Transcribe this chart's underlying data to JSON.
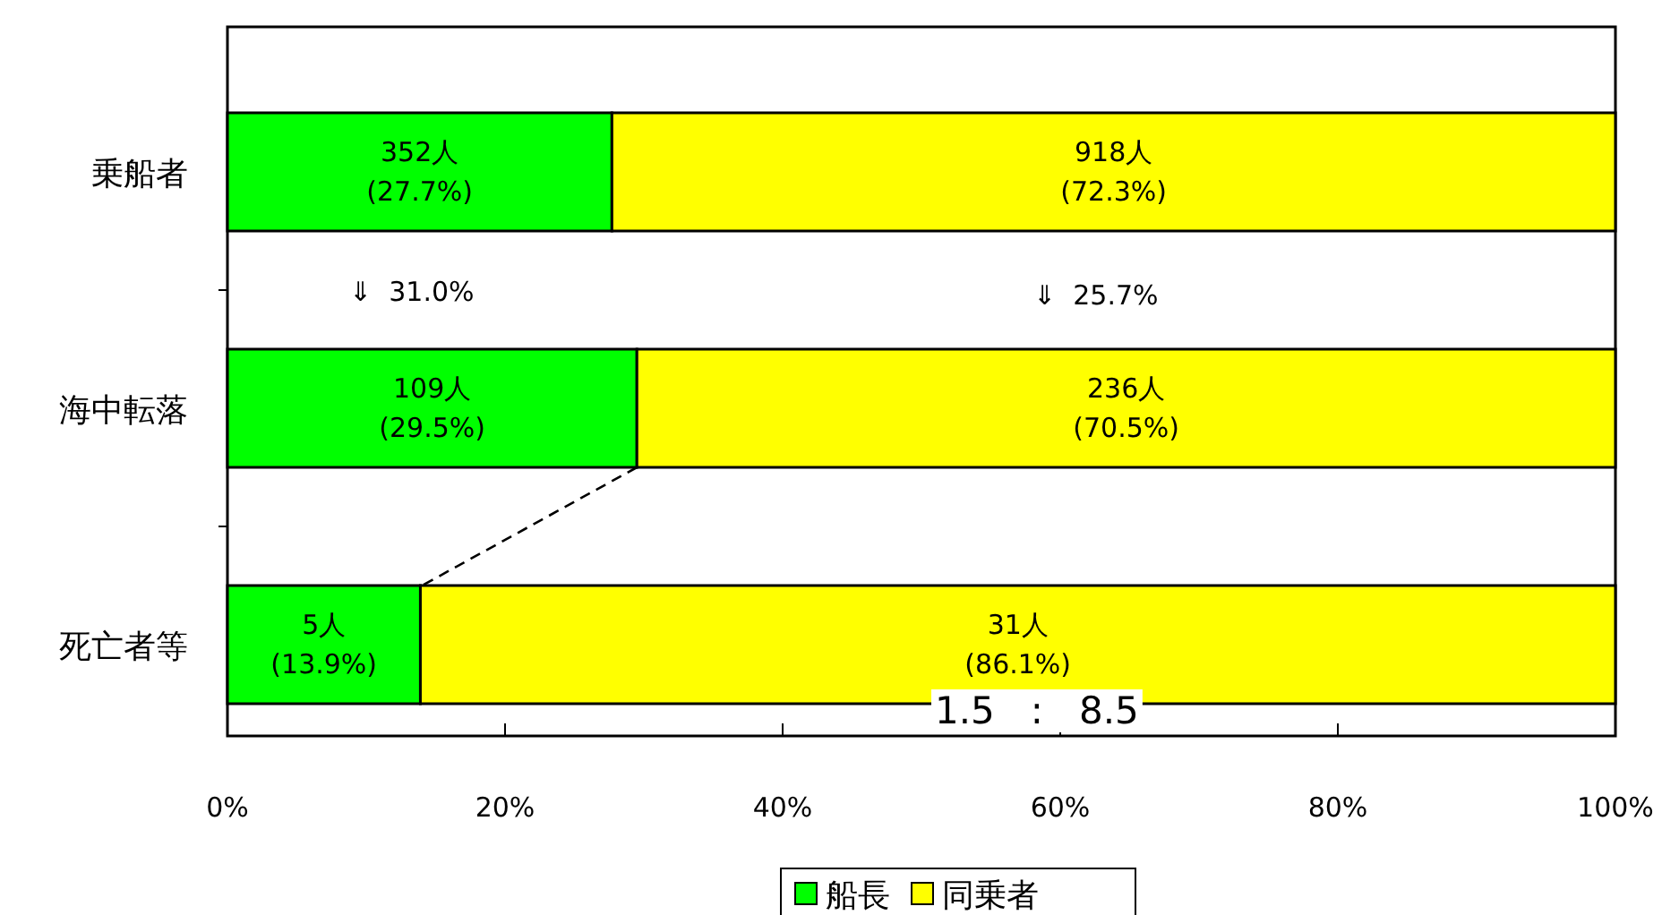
{
  "chart_data": {
    "type": "bar",
    "orientation": "horizontal",
    "stacked": true,
    "categories": [
      "乗船者",
      "海中転落",
      "死亡者等"
    ],
    "series": [
      {
        "name": "船長",
        "color": "#00ff00",
        "values": [
          27.7,
          29.5,
          13.9
        ],
        "value_labels": [
          "352人\n(27.7%)",
          "109人\n(29.5%)",
          "5人\n(13.9%)"
        ]
      },
      {
        "name": "同乗者",
        "color": "#ffff00",
        "values": [
          72.3,
          70.5,
          86.1
        ],
        "value_labels": [
          "918人\n(72.3%)",
          "236人\n(70.5%)",
          "31人\n(86.1%)"
        ]
      }
    ],
    "xlim": [
      0,
      100
    ],
    "xticks": [
      {
        "value": 0,
        "label": "0%"
      },
      {
        "value": 20,
        "label": "20%"
      },
      {
        "value": 40,
        "label": "40%"
      },
      {
        "value": 60,
        "label": "60%"
      },
      {
        "value": 80,
        "label": "80%"
      },
      {
        "value": 100,
        "label": "100%"
      }
    ],
    "annotations": [
      "⇓  31.0%",
      "⇓  25.7%",
      "1.5   :   8.5"
    ],
    "legend": "bottom"
  }
}
